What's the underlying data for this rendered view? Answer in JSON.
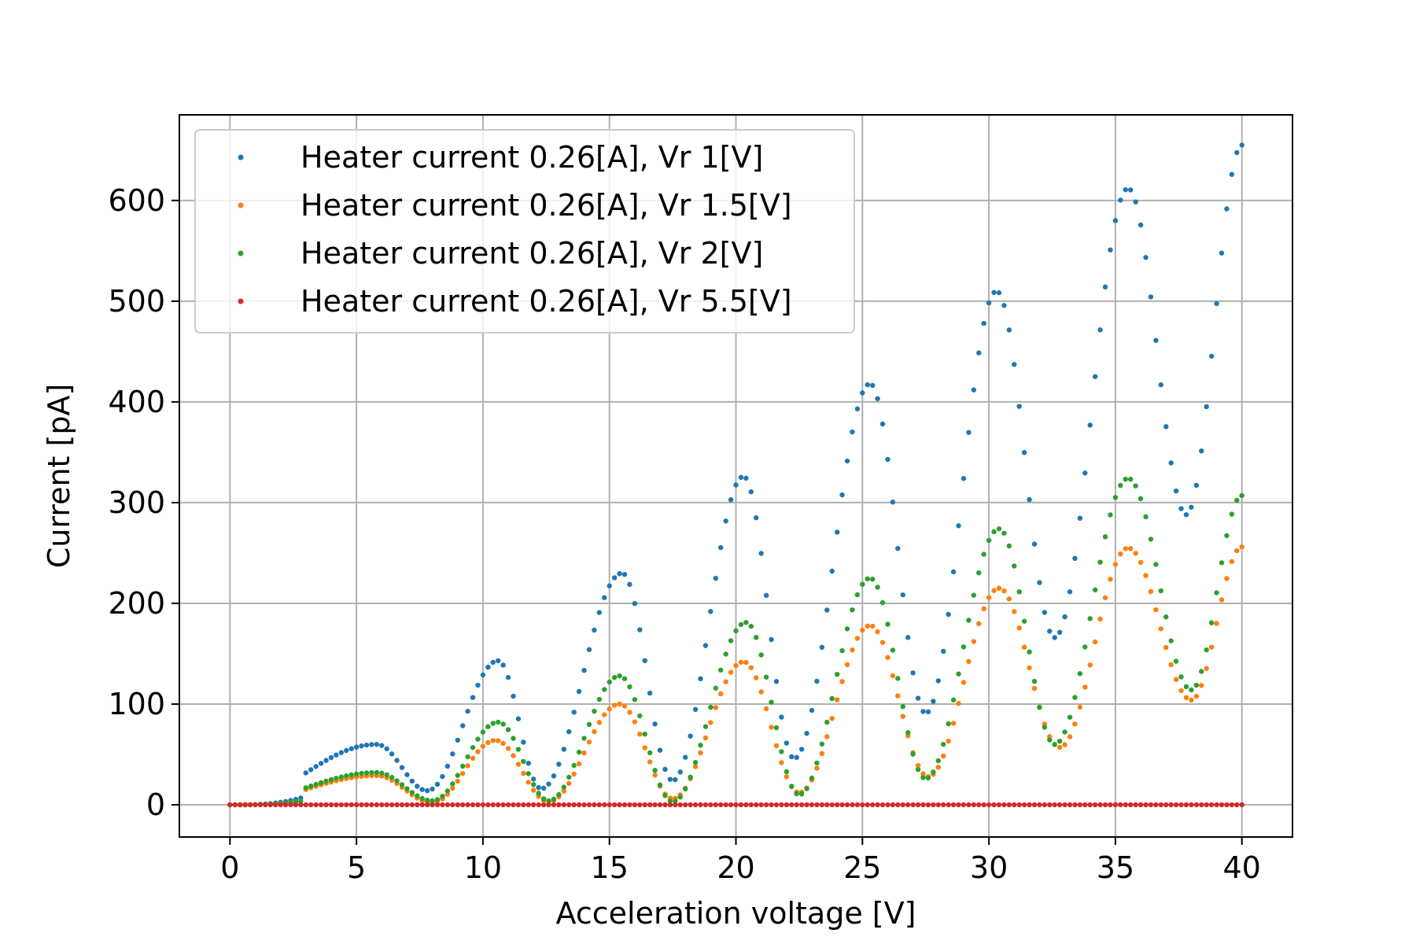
{
  "chart_data": {
    "type": "scatter",
    "title": "",
    "xlabel": "Acceleration voltage [V]",
    "ylabel": "Current [pA]",
    "xlim": [
      -2,
      42
    ],
    "ylim": [
      -32,
      685
    ],
    "xticks": [
      0,
      5,
      10,
      15,
      20,
      25,
      30,
      35,
      40
    ],
    "yticks": [
      0,
      100,
      200,
      300,
      400,
      500,
      600
    ],
    "grid": true,
    "legend_position": "top-left",
    "x_start": 0,
    "x_end": 40,
    "x_step": 0.2,
    "series": [
      {
        "name": "Heater current 0.26[A], Vr 1[V]",
        "color": "#1f77b4",
        "peaks": [
          [
            5.8,
            60
          ],
          [
            10.6,
            143
          ],
          [
            15.5,
            230
          ],
          [
            20.3,
            326
          ],
          [
            25.3,
            418
          ],
          [
            30.3,
            510
          ],
          [
            35.5,
            612
          ],
          [
            40,
            655
          ]
        ],
        "valleys": [
          [
            0,
            0
          ],
          [
            7.8,
            14
          ],
          [
            12.3,
            16
          ],
          [
            17.5,
            24
          ],
          [
            22.3,
            46
          ],
          [
            27.5,
            91
          ],
          [
            32.6,
            166
          ],
          [
            37.8,
            288
          ]
        ]
      },
      {
        "name": "Heater current 0.26[A], Vr 1.5[V]",
        "color": "#ff7f0e",
        "peaks": [
          [
            5.8,
            29
          ],
          [
            10.5,
            64
          ],
          [
            15.4,
            100
          ],
          [
            20.3,
            142
          ],
          [
            25.3,
            178
          ],
          [
            30.4,
            215
          ],
          [
            35.5,
            255
          ],
          [
            40,
            256
          ]
        ],
        "valleys": [
          [
            0,
            0
          ],
          [
            8.0,
            2
          ],
          [
            12.6,
            3
          ],
          [
            17.5,
            6
          ],
          [
            22.5,
            12
          ],
          [
            27.6,
            28
          ],
          [
            32.8,
            57
          ],
          [
            38.0,
            104
          ]
        ]
      },
      {
        "name": "Heater current 0.26[A], Vr 2[V]",
        "color": "#2ca02c",
        "peaks": [
          [
            5.8,
            32
          ],
          [
            10.6,
            82
          ],
          [
            15.4,
            128
          ],
          [
            20.4,
            181
          ],
          [
            25.3,
            225
          ],
          [
            30.4,
            274
          ],
          [
            35.5,
            324
          ],
          [
            40,
            307
          ]
        ],
        "valleys": [
          [
            0,
            0
          ],
          [
            8.0,
            4
          ],
          [
            12.6,
            4
          ],
          [
            17.5,
            3
          ],
          [
            22.5,
            10
          ],
          [
            27.5,
            26
          ],
          [
            32.6,
            60
          ],
          [
            38.0,
            114
          ]
        ]
      },
      {
        "name": "Heater current 0.26[A], Vr 5.5[V]",
        "color": "#d62728",
        "constant": 0
      }
    ]
  }
}
